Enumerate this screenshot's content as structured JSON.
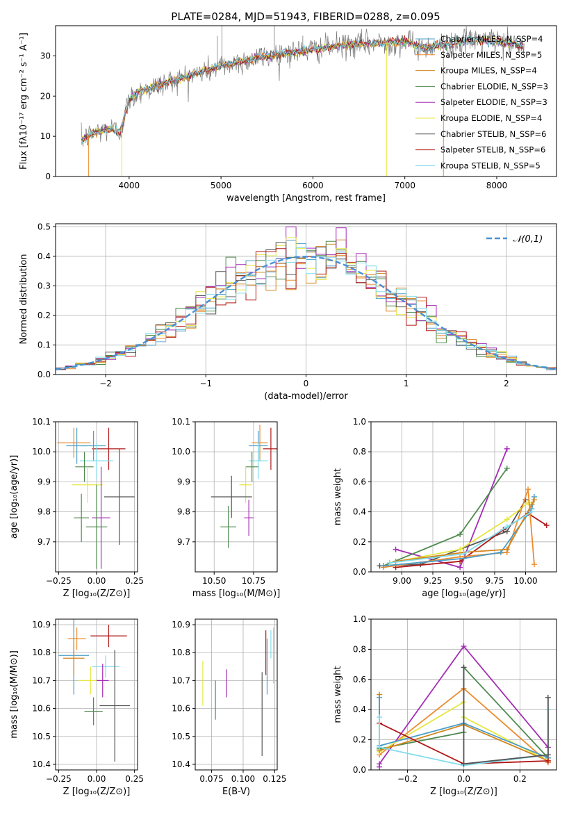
{
  "figure": {
    "title": "PLATE=0284, MJD=51943, FIBERID=0288, z=0.095"
  },
  "colors": {
    "grid": "#b0b0b0",
    "model_series": [
      "#4a9ec9",
      "#ec8c2e",
      "#d3851e",
      "#4f8a4f",
      "#a42cb5",
      "#e6e640",
      "#555555",
      "#b01818",
      "#7fdcec"
    ]
  },
  "chart_data": [
    {
      "type": "line",
      "panel": "spectrum",
      "xlabel": "wavelength [Angstrom, rest frame]",
      "ylabel": "Flux [fλ10⁻¹⁷ erg cm⁻² s⁻¹ A⁻¹]",
      "xlim": [
        3200,
        8650
      ],
      "ylim": [
        0,
        37.5
      ],
      "xticks": [
        "4000",
        "5000",
        "6000",
        "7000",
        "8000"
      ],
      "yticks": [
        "0",
        "10",
        "20",
        "30"
      ],
      "legend_position": "upper-right",
      "series": [
        {
          "name": "Chabrier MILES, N_SSP=4"
        },
        {
          "name": "Salpeter MILES, N_SSP=5"
        },
        {
          "name": "Kroupa MILES, N_SSP=4"
        },
        {
          "name": "Chabrier ELODIE, N_SSP=3"
        },
        {
          "name": "Salpeter ELODIE, N_SSP=3"
        },
        {
          "name": "Kroupa ELODIE, N_SSP=4"
        },
        {
          "name": "Chabrier STELIB, N_SSP=6"
        },
        {
          "name": "Salpeter STELIB, N_SSP=6"
        },
        {
          "name": "Kroupa STELIB, N_SSP=5"
        }
      ],
      "continuum": {
        "x": [
          3480,
          3550,
          3650,
          3800,
          3900,
          3950,
          4000,
          4100,
          4300,
          4500,
          4800,
          5000,
          5200,
          5500,
          5800,
          6000,
          6300,
          6600,
          7000,
          7200,
          7500,
          7800,
          8000,
          8200,
          8300
        ],
        "y": [
          9,
          10,
          11,
          12,
          11,
          15,
          19,
          21,
          22.5,
          24,
          26,
          27.5,
          28.5,
          30,
          31,
          31.5,
          32.5,
          33,
          33.5,
          32,
          33,
          34,
          33.5,
          33,
          32
        ]
      }
    },
    {
      "type": "histogram",
      "panel": "residuals",
      "xlabel": "(data-model)/error",
      "ylabel": "Normed distribution",
      "xlim": [
        -2.5,
        2.5
      ],
      "ylim": [
        0,
        0.51
      ],
      "xticks": [
        "−2",
        "−1",
        "0",
        "1",
        "2"
      ],
      "yticks": [
        "0.0",
        "0.1",
        "0.2",
        "0.3",
        "0.4",
        "0.5"
      ],
      "bin_width": 0.1,
      "reference_curve": "𝒩(0,1)",
      "legend_position": "upper-right"
    },
    {
      "type": "scatter",
      "panel": "age-vs-metallicity",
      "xlabel": "Z [log₁₀(Z/Z⊙)]",
      "ylabel": "age  [log₁₀(age/yr)]",
      "xlim": [
        -0.27,
        0.27
      ],
      "ylim": [
        9.6,
        10.1
      ],
      "xticks": [
        "−0.25",
        "0.00",
        "0.25"
      ],
      "yticks": [
        "9.7",
        "9.8",
        "9.9",
        "10.0",
        "10.1"
      ],
      "points": [
        {
          "x": -0.15,
          "y": 10.03,
          "ex": 0.11,
          "ey": 0.05,
          "c": 1
        },
        {
          "x": -0.13,
          "y": 10.02,
          "ex": 0.07,
          "ey": 0.06,
          "c": 0
        },
        {
          "x": 0.08,
          "y": 10.01,
          "ex": 0.11,
          "ey": 0.07,
          "c": 7
        },
        {
          "x": -0.02,
          "y": 10.02,
          "ex": 0.08,
          "ey": 0.05,
          "c": 0
        },
        {
          "x": 0.0,
          "y": 9.97,
          "ex": 0.11,
          "ey": 0.06,
          "c": 8
        },
        {
          "x": -0.08,
          "y": 9.95,
          "ex": 0.06,
          "ey": 0.05,
          "c": 3
        },
        {
          "x": -0.06,
          "y": 9.89,
          "ex": 0.1,
          "ey": 0.06,
          "c": 5
        },
        {
          "x": 0.15,
          "y": 9.85,
          "ex": 0.1,
          "ey": 0.16,
          "c": 6
        },
        {
          "x": 0.03,
          "y": 9.78,
          "ex": 0.06,
          "ey": 0.17,
          "c": 4
        },
        {
          "x": -0.1,
          "y": 9.78,
          "ex": 0.05,
          "ey": 0.08,
          "c": 3
        },
        {
          "x": 0.0,
          "y": 9.75,
          "ex": 0.07,
          "ey": 0.14,
          "c": 3
        }
      ]
    },
    {
      "type": "scatter",
      "panel": "age-vs-mass",
      "xlabel": "mass [log₁₀(M/M⊙)]",
      "xlim": [
        10.38,
        10.9
      ],
      "ylim": [
        9.6,
        10.1
      ],
      "xticks": [
        "10.50",
        "10.75"
      ],
      "yticks": [
        "9.7",
        "9.8",
        "9.9",
        "10.0",
        "10.1"
      ],
      "points": [
        {
          "x": 10.79,
          "y": 10.03,
          "ex": 0.05,
          "ey": 0.06,
          "c": 1
        },
        {
          "x": 10.78,
          "y": 10.02,
          "ex": 0.06,
          "ey": 0.05,
          "c": 0
        },
        {
          "x": 10.86,
          "y": 10.01,
          "ex": 0.05,
          "ey": 0.07,
          "c": 7
        },
        {
          "x": 10.78,
          "y": 9.97,
          "ex": 0.06,
          "ey": 0.06,
          "c": 8
        },
        {
          "x": 10.74,
          "y": 9.95,
          "ex": 0.04,
          "ey": 0.05,
          "c": 3
        },
        {
          "x": 10.7,
          "y": 9.89,
          "ex": 0.04,
          "ey": 0.06,
          "c": 5
        },
        {
          "x": 10.61,
          "y": 9.85,
          "ex": 0.13,
          "ey": 0.07,
          "c": 6
        },
        {
          "x": 10.72,
          "y": 9.78,
          "ex": 0.03,
          "ey": 0.06,
          "c": 4
        },
        {
          "x": 10.59,
          "y": 9.75,
          "ex": 0.05,
          "ey": 0.07,
          "c": 3
        }
      ]
    },
    {
      "type": "line",
      "panel": "weight-vs-age",
      "xlabel": "age  [log₁₀(age/yr)]",
      "ylabel": "mass weight",
      "xlim": [
        8.75,
        10.25
      ],
      "ylim": [
        0,
        1.0
      ],
      "xticks": [
        "9.00",
        "9.25",
        "9.50",
        "9.75",
        "10.00"
      ],
      "yticks": [
        "0.0",
        "0.2",
        "0.4",
        "0.6",
        "0.8",
        "1.0"
      ],
      "series": [
        {
          "c": 4,
          "x": [
            8.95,
            9.47,
            9.85
          ],
          "y": [
            0.15,
            0.03,
            0.82
          ]
        },
        {
          "c": 3,
          "x": [
            8.85,
            9.47,
            9.85
          ],
          "y": [
            0.04,
            0.25,
            0.69
          ]
        },
        {
          "c": 6,
          "x": [
            8.82,
            9.15,
            9.85,
            10.0
          ],
          "y": [
            0.04,
            0.05,
            0.27,
            0.48
          ]
        },
        {
          "c": 7,
          "x": [
            8.95,
            9.47,
            9.82,
            10.02,
            10.17
          ],
          "y": [
            0.03,
            0.07,
            0.28,
            0.39,
            0.31
          ]
        },
        {
          "c": 5,
          "x": [
            8.9,
            9.47,
            9.85,
            10.02
          ],
          "y": [
            0.06,
            0.15,
            0.35,
            0.46
          ]
        },
        {
          "c": 1,
          "x": [
            8.85,
            9.47,
            9.85,
            10.02,
            10.07
          ],
          "y": [
            0.03,
            0.1,
            0.13,
            0.55,
            0.05
          ]
        },
        {
          "c": 0,
          "x": [
            8.85,
            9.5,
            9.8,
            10.05,
            10.07
          ],
          "y": [
            0.04,
            0.09,
            0.13,
            0.42,
            0.5
          ]
        },
        {
          "c": 2,
          "x": [
            8.95,
            9.5,
            9.85,
            10.05,
            10.07
          ],
          "y": [
            0.07,
            0.13,
            0.15,
            0.45,
            0.48
          ]
        },
        {
          "c": 8,
          "x": [
            8.9,
            9.5,
            9.85,
            10.05
          ],
          "y": [
            0.06,
            0.12,
            0.3,
            0.4
          ]
        }
      ]
    },
    {
      "type": "scatter",
      "panel": "mass-vs-metallicity",
      "xlabel": "Z [log₁₀(Z/Z⊙)]",
      "ylabel": "mass [log₁₀(M/M⊙)]",
      "xlim": [
        -0.27,
        0.27
      ],
      "ylim": [
        10.38,
        10.92
      ],
      "xticks": [
        "−0.25",
        "0.00",
        "0.25"
      ],
      "yticks": [
        "10.4",
        "10.5",
        "10.6",
        "10.7",
        "10.8",
        "10.9"
      ],
      "points": [
        {
          "x": 0.08,
          "y": 10.86,
          "ex": 0.12,
          "ey": 0.04,
          "c": 7
        },
        {
          "x": -0.13,
          "y": 10.85,
          "ex": 0.06,
          "ey": 0.04,
          "c": 1
        },
        {
          "x": -0.15,
          "y": 10.79,
          "ex": 0.1,
          "ey": 0.14,
          "c": 0
        },
        {
          "x": -0.15,
          "y": 10.78,
          "ex": 0.07,
          "ey": 0.06,
          "c": 2
        },
        {
          "x": 0.06,
          "y": 10.75,
          "ex": 0.09,
          "ey": 0.04,
          "c": 8
        },
        {
          "x": -0.04,
          "y": 10.7,
          "ex": 0.08,
          "ey": 0.05,
          "c": 5
        },
        {
          "x": 0.04,
          "y": 10.7,
          "ex": 0.04,
          "ey": 0.06,
          "c": 4
        },
        {
          "x": 0.12,
          "y": 10.61,
          "ex": 0.1,
          "ey": 0.2,
          "c": 6
        },
        {
          "x": -0.02,
          "y": 10.59,
          "ex": 0.06,
          "ey": 0.05,
          "c": 3
        }
      ]
    },
    {
      "type": "scatter",
      "panel": "mass-vs-ebv",
      "xlabel": "E(B-V)",
      "xlim": [
        0.062,
        0.127
      ],
      "ylim": [
        10.38,
        10.92
      ],
      "xticks": [
        "0.075",
        "0.100",
        "0.125"
      ],
      "yticks": [
        "10.4",
        "10.5",
        "10.6",
        "10.7",
        "10.8",
        "10.9"
      ],
      "points": [
        {
          "x": 0.068,
          "y": 10.69,
          "ey": 0.08,
          "c": 5
        },
        {
          "x": 0.078,
          "y": 10.63,
          "ey": 0.07,
          "c": 3
        },
        {
          "x": 0.087,
          "y": 10.69,
          "ey": 0.05,
          "c": 4
        },
        {
          "x": 0.115,
          "y": 10.58,
          "ey": 0.15,
          "c": 6
        },
        {
          "x": 0.118,
          "y": 10.8,
          "ey": 0.08,
          "c": 7
        },
        {
          "x": 0.119,
          "y": 10.75,
          "ey": 0.1,
          "c": 0
        },
        {
          "x": 0.122,
          "y": 10.83,
          "ey": 0.05,
          "c": 8
        },
        {
          "x": 0.124,
          "y": 10.79,
          "ey": 0.1,
          "c": 8
        }
      ]
    },
    {
      "type": "line",
      "panel": "weight-vs-metallicity",
      "xlabel": "Z [log₁₀(Z/Z⊙)]",
      "ylabel": "mass weight",
      "xlim": [
        -0.33,
        0.33
      ],
      "ylim": [
        0,
        1.0
      ],
      "xticks": [
        "−0.2",
        "0.0",
        "0.2"
      ],
      "yticks": [
        "0.0",
        "0.2",
        "0.4",
        "0.6",
        "0.8",
        "1.0"
      ],
      "series": [
        {
          "c": 4,
          "x": [
            -0.3,
            -0.3,
            0.0,
            0.3,
            0.3
          ],
          "y": [
            0.02,
            0.04,
            0.82,
            0.15,
            0.05
          ]
        },
        {
          "c": 3,
          "x": [
            -0.3,
            0.0,
            0.0,
            0.3
          ],
          "y": [
            0.14,
            0.25,
            0.68,
            0.08
          ]
        },
        {
          "c": 1,
          "x": [
            -0.3,
            0.0,
            0.3
          ],
          "y": [
            0.1,
            0.54,
            0.05
          ]
        },
        {
          "c": 5,
          "x": [
            -0.3,
            0.0,
            0.0,
            0.3
          ],
          "y": [
            0.12,
            0.45,
            0.35,
            0.06
          ]
        },
        {
          "c": 2,
          "x": [
            -0.3,
            -0.3,
            0.0,
            0.3,
            0.3
          ],
          "y": [
            0.5,
            0.13,
            0.3,
            0.06,
            0.4
          ]
        },
        {
          "c": 0,
          "x": [
            -0.3,
            -0.3,
            0.0,
            0.3
          ],
          "y": [
            0.48,
            0.16,
            0.31,
            0.08
          ]
        },
        {
          "c": 7,
          "x": [
            -0.3,
            0.0,
            0.3
          ],
          "y": [
            0.31,
            0.04,
            0.06
          ]
        },
        {
          "c": 8,
          "x": [
            -0.3,
            -0.3,
            0.0,
            0.3,
            0.3
          ],
          "y": [
            0.35,
            0.15,
            0.03,
            0.1,
            0.4
          ]
        },
        {
          "c": 6,
          "x": [
            0.0,
            0.0,
            0.3,
            0.3
          ],
          "y": [
            0.68,
            0.04,
            0.1,
            0.48
          ]
        }
      ]
    }
  ]
}
